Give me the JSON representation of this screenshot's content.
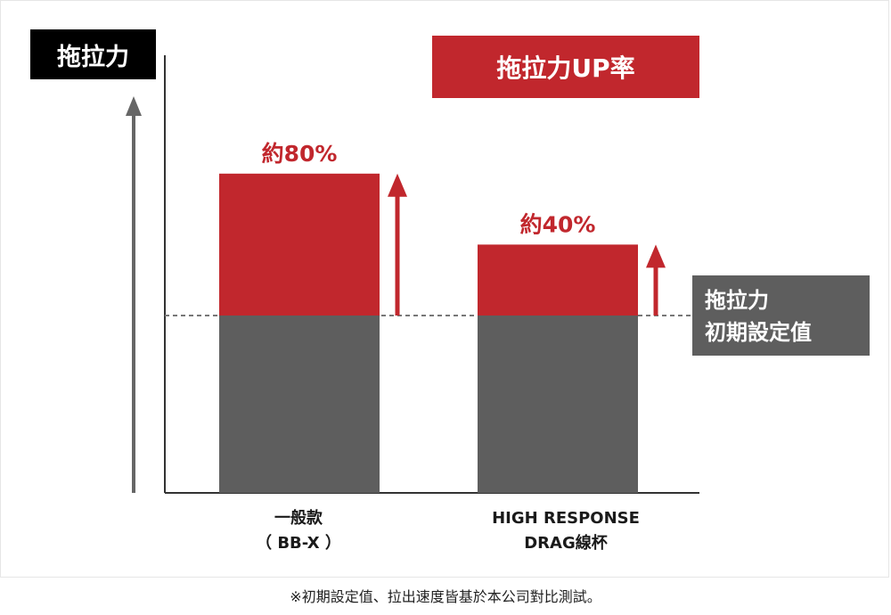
{
  "chart_data": {
    "type": "bar",
    "title": "",
    "ylabel": "拖拉力",
    "legend": "拖拉力UP率",
    "baseline_label_lines": [
      "拖拉力",
      "初期設定值"
    ],
    "categories": [
      {
        "lines": [
          "一般款",
          "（ BB-X ）"
        ]
      },
      {
        "lines": [
          "HIGH RESPONSE",
          "DRAG線杯"
        ]
      }
    ],
    "series": [
      {
        "name": "初期設定值",
        "values": [
          100,
          100
        ],
        "color": "#5e5e5e"
      },
      {
        "name": "拖拉力UP率",
        "values": [
          80,
          40
        ],
        "color": "#c1272d",
        "labels": [
          "約80%",
          "約40%"
        ]
      }
    ],
    "ylim": [
      0,
      200
    ],
    "grid": false
  },
  "footnote": "※初期設定值、拉出速度皆基於本公司對比測試。",
  "colors": {
    "accent": "#c1272d",
    "base": "#5e5e5e",
    "axis": "#666666"
  }
}
